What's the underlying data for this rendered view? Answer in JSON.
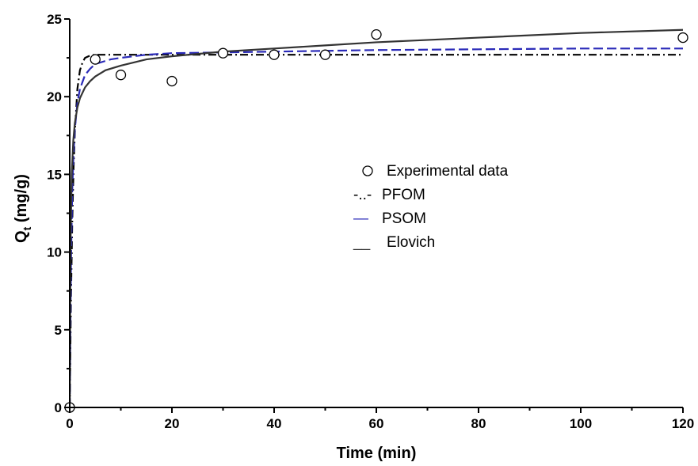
{
  "chart_data": {
    "type": "scatter",
    "title": "",
    "xlabel": "Time (min)",
    "ylabel_main": "Q",
    "ylabel_sub": "t",
    "ylabel_rest": " (mg/g)",
    "xlim": [
      0,
      120
    ],
    "ylim": [
      0,
      25
    ],
    "xticks": [
      "0",
      "20",
      "40",
      "60",
      "80",
      "100",
      "120"
    ],
    "yticks": [
      "0",
      "5",
      "10",
      "15",
      "20",
      "25"
    ],
    "grid": false,
    "legend_position": "center-right",
    "series": [
      {
        "name": "Experimental data",
        "kind": "markers",
        "color": "#000000",
        "x": [
          0,
          5,
          10,
          20,
          30,
          40,
          50,
          60,
          120
        ],
        "y": [
          0,
          22.4,
          21.4,
          21.0,
          22.8,
          22.7,
          22.7,
          24.0,
          23.8
        ]
      },
      {
        "name": "PFOM",
        "legend_symbol": "-..-",
        "kind": "line",
        "color": "#000000",
        "dash": "10,4,2,4",
        "x": [
          0,
          0.25,
          0.5,
          0.75,
          1,
          1.5,
          2,
          2.5,
          3,
          4,
          5,
          6,
          8,
          10,
          20,
          30,
          40,
          50,
          60,
          80,
          100,
          120
        ],
        "y": [
          0,
          7.1,
          12.0,
          15.4,
          17.7,
          20.5,
          21.7,
          22.2,
          22.5,
          22.65,
          22.7,
          22.7,
          22.7,
          22.7,
          22.7,
          22.7,
          22.7,
          22.7,
          22.7,
          22.7,
          22.7,
          22.7
        ]
      },
      {
        "name": "PSOM",
        "legend_symbol": "—",
        "kind": "line",
        "color": "#2a2ab8",
        "dash": "12,5",
        "x": [
          0,
          0.25,
          0.5,
          0.75,
          1,
          1.5,
          2,
          3,
          4,
          5,
          6,
          8,
          10,
          15,
          20,
          30,
          40,
          50,
          60,
          80,
          100,
          120
        ],
        "y": [
          0,
          9.4,
          14.0,
          16.4,
          17.9,
          19.6,
          20.5,
          21.4,
          21.8,
          22.1,
          22.2,
          22.4,
          22.5,
          22.7,
          22.8,
          22.85,
          22.9,
          22.95,
          23.0,
          23.05,
          23.1,
          23.1
        ]
      },
      {
        "name": "Elovich",
        "legend_symbol": "__",
        "kind": "line",
        "color": "#333333",
        "dash": "",
        "x": [
          0,
          0.1,
          0.2,
          0.4,
          0.7,
          1,
          1.5,
          2,
          3,
          4,
          5,
          7,
          10,
          15,
          20,
          30,
          40,
          50,
          60,
          80,
          100,
          120
        ],
        "y": [
          0,
          7.5,
          11.4,
          15.0,
          17.2,
          18.3,
          19.3,
          19.9,
          20.6,
          21.0,
          21.3,
          21.7,
          22.0,
          22.4,
          22.6,
          22.9,
          23.1,
          23.3,
          23.5,
          23.8,
          24.1,
          24.3
        ]
      }
    ]
  }
}
